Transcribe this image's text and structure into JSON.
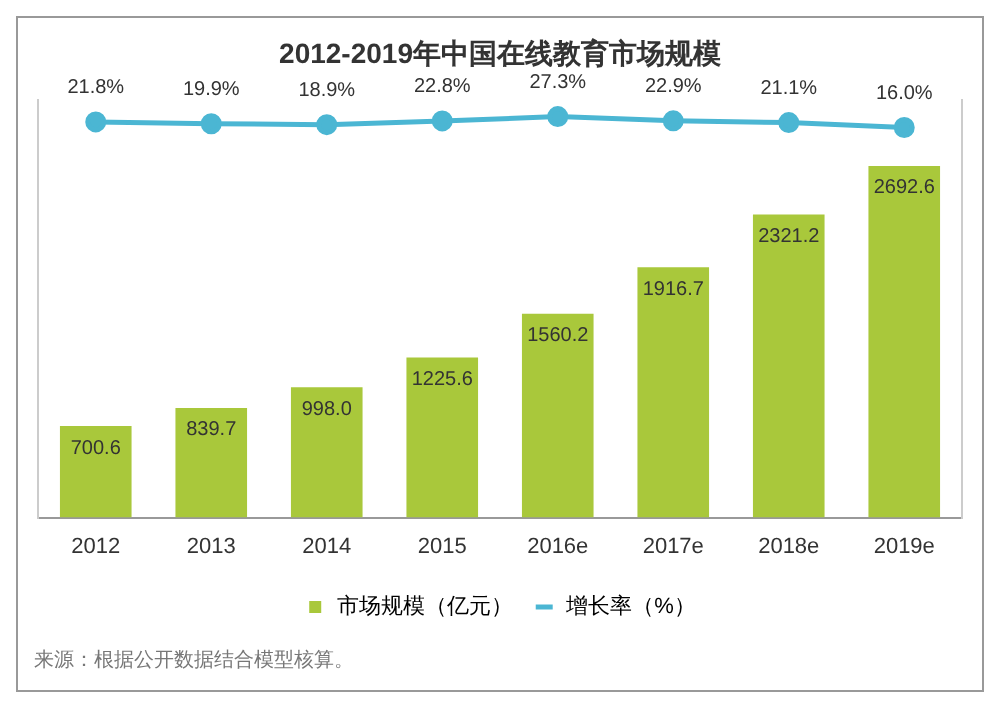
{
  "chart_data": {
    "type": "bar",
    "title": "2012-2019年中国在线教育市场规模",
    "categories": [
      "2012",
      "2013",
      "2014",
      "2015",
      "2016e",
      "2017e",
      "2018e",
      "2019e"
    ],
    "series": [
      {
        "name": "市场规模（亿元）",
        "color": "#a9c83b",
        "values": [
          700.6,
          839.7,
          998.0,
          1225.6,
          1560.2,
          1916.7,
          2321.2,
          2692.6
        ],
        "value_labels": [
          "700.6",
          "839.7",
          "998.0",
          "1225.6",
          "1560.2",
          "1916.7",
          "2321.2",
          "2692.6"
        ]
      },
      {
        "name": "增长率（%）",
        "type": "line",
        "axis": "y2",
        "color": "#4bb6d3",
        "values": [
          21.8,
          19.9,
          18.9,
          22.8,
          27.3,
          22.9,
          21.1,
          16.0
        ],
        "value_labels": [
          "21.8%",
          "19.9%",
          "18.9%",
          "22.8%",
          "27.3%",
          "22.9%",
          "21.1%",
          "16.0%"
        ]
      }
    ],
    "ylim": [
      0,
      3200
    ],
    "y2lim": [
      -390,
      45
    ],
    "legend": "bottom",
    "marker": "circle",
    "grid": false,
    "tick_labels": "x",
    "annotations": [
      "来源：根据公开数据结合模型核算。"
    ]
  }
}
